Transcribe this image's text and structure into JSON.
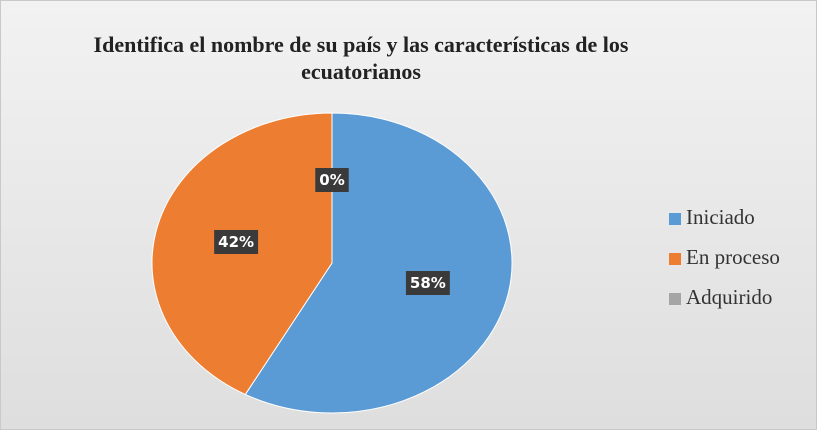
{
  "chart_data": {
    "type": "pie",
    "title": "Identifica el nombre de su país y las características de los ecuatorianos",
    "categories": [
      "Iniciado",
      "En proceso",
      "Adquirido"
    ],
    "values": [
      58,
      42,
      0
    ],
    "value_labels": [
      "58%",
      "42%",
      "0%"
    ],
    "colors": [
      "#5b9bd5",
      "#ed7d31",
      "#a5a5a5"
    ],
    "legend": "right"
  }
}
